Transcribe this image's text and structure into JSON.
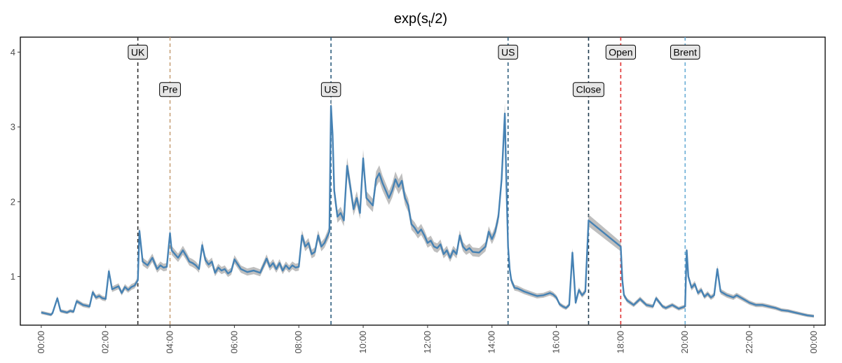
{
  "chart_data": {
    "type": "line",
    "title": {
      "base": "exp(s",
      "sub": "t",
      "tail": "/2)"
    },
    "xlabel": "",
    "ylabel": "",
    "xlim": [
      -0.65,
      24.35
    ],
    "ylim": [
      0.35,
      4.2
    ],
    "x_ticks": [
      0,
      2,
      4,
      6,
      8,
      10,
      12,
      14,
      16,
      18,
      20,
      22,
      24
    ],
    "x_tick_labels": [
      "00:00",
      "02:00",
      "04:00",
      "06:00",
      "08:00",
      "10:00",
      "12:00",
      "14:00",
      "16:00",
      "18:00",
      "20:00",
      "22:00",
      "00:00"
    ],
    "y_ticks": [
      1,
      2,
      3,
      4
    ],
    "y_tick_labels": [
      "1",
      "2",
      "3",
      "4"
    ],
    "grid": false,
    "colors": {
      "line": "#4682B4",
      "band": "#A9A9A9",
      "axis": "#000000",
      "tick_text": "#4d4d4d",
      "label_bg": "#E6E6E6"
    },
    "vlines": [
      {
        "x": 3.0,
        "label": "UK",
        "color": "#2F2F2F",
        "label_y": 4.0
      },
      {
        "x": 4.0,
        "label": "Pre",
        "color": "#C8A27A",
        "label_y": 3.5
      },
      {
        "x": 9.0,
        "label": "US",
        "color": "#2E5E7E",
        "label_y": 3.5
      },
      {
        "x": 14.5,
        "label": "US",
        "color": "#2E5E7E",
        "label_y": 4.0
      },
      {
        "x": 17.0,
        "label": "Close",
        "color": "#1F3A4D",
        "label_y": 3.5
      },
      {
        "x": 18.0,
        "label": "Open",
        "color": "#E03030",
        "label_y": 4.0
      },
      {
        "x": 20.0,
        "label": "Brent",
        "color": "#6BAED6",
        "label_y": 4.0
      }
    ],
    "series": [
      {
        "x": [
          0.0,
          0.3,
          0.35,
          0.5,
          0.6,
          0.8,
          0.9,
          1.0,
          1.1,
          1.3,
          1.4,
          1.5,
          1.6,
          1.7,
          1.8,
          1.9,
          2.0,
          2.1,
          2.2,
          2.3,
          2.4,
          2.5,
          2.6,
          2.7,
          2.8,
          2.9,
          3.0,
          3.05,
          3.15,
          3.3,
          3.45,
          3.6,
          3.7,
          3.8,
          3.9,
          4.0,
          4.05,
          4.15,
          4.25,
          4.4,
          4.5,
          4.6,
          4.7,
          4.8,
          4.9,
          5.0,
          5.1,
          5.2,
          5.3,
          5.4,
          5.5,
          5.6,
          5.7,
          5.8,
          5.9,
          6.0,
          6.2,
          6.4,
          6.6,
          6.8,
          7.0,
          7.1,
          7.2,
          7.3,
          7.4,
          7.5,
          7.6,
          7.7,
          7.8,
          7.9,
          8.0,
          8.1,
          8.2,
          8.3,
          8.4,
          8.5,
          8.6,
          8.7,
          8.8,
          8.95,
          9.0,
          9.05,
          9.1,
          9.2,
          9.3,
          9.4,
          9.5,
          9.6,
          9.7,
          9.8,
          9.9,
          10.0,
          10.1,
          10.2,
          10.3,
          10.4,
          10.5,
          10.6,
          10.7,
          10.8,
          10.9,
          11.0,
          11.1,
          11.2,
          11.3,
          11.4,
          11.5,
          11.6,
          11.7,
          11.8,
          11.9,
          12.0,
          12.1,
          12.2,
          12.3,
          12.4,
          12.5,
          12.6,
          12.7,
          12.8,
          12.9,
          13.0,
          13.1,
          13.2,
          13.3,
          13.4,
          13.6,
          13.8,
          13.9,
          14.0,
          14.1,
          14.2,
          14.3,
          14.4,
          14.45,
          14.5,
          14.55,
          14.6,
          14.7,
          14.8,
          14.9,
          15.0,
          15.2,
          15.4,
          15.6,
          15.8,
          15.9,
          16.0,
          16.1,
          16.2,
          16.3,
          16.4,
          16.5,
          16.6,
          16.7,
          16.8,
          16.9,
          17.0,
          18.0,
          18.05,
          18.1,
          18.2,
          18.4,
          18.6,
          18.8,
          19.0,
          19.1,
          19.3,
          19.4,
          19.6,
          19.8,
          20.0,
          20.05,
          20.1,
          20.2,
          20.3,
          20.4,
          20.5,
          20.6,
          20.7,
          20.8,
          20.9,
          21.0,
          21.1,
          21.3,
          21.5,
          21.6,
          21.8,
          22.0,
          22.2,
          22.4,
          22.6,
          22.8,
          23.0,
          23.2,
          23.4,
          23.6,
          23.8,
          24.0
        ],
        "y": [
          0.52,
          0.49,
          0.51,
          0.71,
          0.54,
          0.52,
          0.54,
          0.53,
          0.67,
          0.62,
          0.61,
          0.6,
          0.79,
          0.72,
          0.74,
          0.71,
          0.7,
          1.07,
          0.83,
          0.85,
          0.87,
          0.78,
          0.86,
          0.82,
          0.86,
          0.88,
          0.95,
          1.61,
          1.2,
          1.15,
          1.25,
          1.1,
          1.15,
          1.12,
          1.13,
          1.58,
          1.35,
          1.3,
          1.25,
          1.35,
          1.28,
          1.2,
          1.18,
          1.15,
          1.1,
          1.42,
          1.22,
          1.16,
          1.2,
          1.05,
          1.12,
          1.08,
          1.1,
          1.04,
          1.07,
          1.23,
          1.1,
          1.06,
          1.08,
          1.05,
          1.24,
          1.13,
          1.18,
          1.1,
          1.18,
          1.08,
          1.15,
          1.1,
          1.15,
          1.12,
          1.13,
          1.55,
          1.4,
          1.45,
          1.3,
          1.33,
          1.55,
          1.4,
          1.45,
          1.6,
          3.28,
          2.9,
          2.15,
          1.8,
          1.85,
          1.75,
          2.48,
          2.2,
          1.9,
          2.05,
          1.85,
          2.58,
          2.05,
          2.0,
          1.95,
          2.3,
          2.38,
          2.25,
          2.15,
          2.05,
          2.15,
          2.3,
          2.2,
          2.28,
          2.05,
          1.95,
          1.7,
          1.65,
          1.58,
          1.63,
          1.55,
          1.45,
          1.48,
          1.4,
          1.38,
          1.43,
          1.3,
          1.35,
          1.25,
          1.35,
          1.3,
          1.55,
          1.4,
          1.35,
          1.38,
          1.33,
          1.32,
          1.4,
          1.6,
          1.5,
          1.6,
          1.8,
          2.3,
          3.18,
          2.2,
          1.4,
          1.1,
          0.95,
          0.85,
          0.84,
          0.82,
          0.8,
          0.77,
          0.74,
          0.75,
          0.78,
          0.76,
          0.72,
          0.63,
          0.6,
          0.58,
          0.62,
          1.32,
          0.65,
          0.82,
          0.75,
          0.8,
          1.75,
          1.4,
          0.95,
          0.75,
          0.68,
          0.62,
          0.7,
          0.62,
          0.6,
          0.71,
          0.6,
          0.58,
          0.62,
          0.57,
          0.6,
          1.35,
          1.0,
          0.85,
          0.9,
          0.78,
          0.82,
          0.73,
          0.77,
          0.72,
          0.75,
          1.1,
          0.8,
          0.75,
          0.72,
          0.75,
          0.7,
          0.65,
          0.62,
          0.62,
          0.6,
          0.58,
          0.55,
          0.54,
          0.52,
          0.5,
          0.48,
          0.47
        ]
      }
    ]
  }
}
